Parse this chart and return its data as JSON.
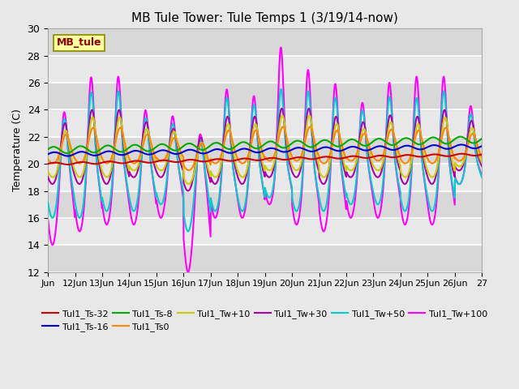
{
  "title": "MB Tule Tower: Tule Temps 1 (3/19/14-now)",
  "ylabel": "Temperature (C)",
  "ylim": [
    12,
    30
  ],
  "xlim": [
    0,
    16
  ],
  "figsize": [
    6.4,
    4.8
  ],
  "dpi": 100,
  "background_color": "#e8e8e8",
  "plot_bg_color": "#e8e8e8",
  "grid_color": "#ffffff",
  "x_tick_labels": [
    "Jun",
    "12Jun",
    "13Jun",
    "14Jun",
    "15Jun",
    "16Jun",
    "17Jun",
    "18Jun",
    "19Jun",
    "20Jun",
    "21Jun",
    "22Jun",
    "23Jun",
    "24Jun",
    "25Jun",
    "26Jun",
    "27"
  ],
  "legend_label": "MB_tule",
  "yticks": [
    12,
    14,
    16,
    18,
    20,
    22,
    24,
    26,
    28,
    30
  ],
  "series": {
    "Tul1_Ts-32": {
      "color": "#cc0000",
      "linewidth": 1.5,
      "zorder": 5
    },
    "Tul1_Ts-16": {
      "color": "#0000cc",
      "linewidth": 1.5,
      "zorder": 5
    },
    "Tul1_Ts-8": {
      "color": "#00aa00",
      "linewidth": 1.5,
      "zorder": 5
    },
    "Tul1_Ts0": {
      "color": "#ff8800",
      "linewidth": 1.5,
      "zorder": 4
    },
    "Tul1_Tw+10": {
      "color": "#cccc00",
      "linewidth": 1.5,
      "zorder": 4
    },
    "Tul1_Tw+30": {
      "color": "#aa00aa",
      "linewidth": 1.5,
      "zorder": 3
    },
    "Tul1_Tw+50": {
      "color": "#00cccc",
      "linewidth": 1.5,
      "zorder": 3
    },
    "Tul1_Tw+100": {
      "color": "#ff00ff",
      "linewidth": 1.5,
      "zorder": 2
    }
  },
  "legend_order": [
    "Tul1_Ts-32",
    "Tul1_Ts-16",
    "Tul1_Ts-8",
    "Tul1_Ts0",
    "Tul1_Tw+10",
    "Tul1_Tw+30",
    "Tul1_Tw+50",
    "Tul1_Tw+100"
  ],
  "legend_ncol": 6
}
